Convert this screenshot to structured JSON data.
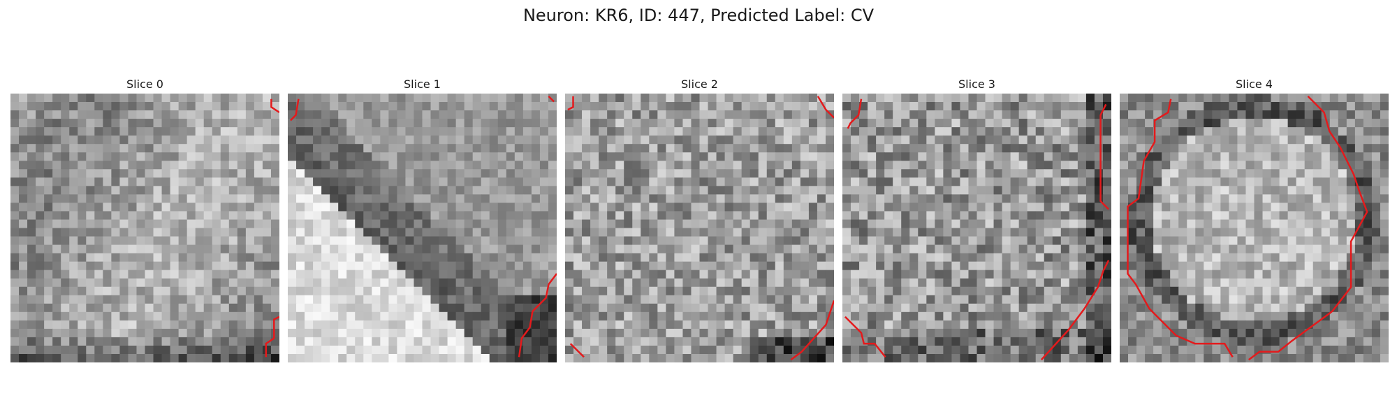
{
  "figure": {
    "title": "Neuron: KR6, ID: 447, Predicted Label: CV"
  },
  "panels": [
    {
      "title": "Slice 0",
      "image_desc": "noisy grayscale patch",
      "contour_color": "#e41a1c"
    },
    {
      "title": "Slice 1",
      "image_desc": "bright diagonal region with dark band",
      "contour_color": "#e41a1c"
    },
    {
      "title": "Slice 2",
      "image_desc": "noisy grayscale patch",
      "contour_color": "#e41a1c"
    },
    {
      "title": "Slice 3",
      "image_desc": "noisy grayscale patch",
      "contour_color": "#e41a1c"
    },
    {
      "title": "Slice 4",
      "image_desc": "round cell body outlined",
      "contour_color": "#e41a1c"
    }
  ],
  "colors": {
    "contour": "#e41a1c"
  }
}
